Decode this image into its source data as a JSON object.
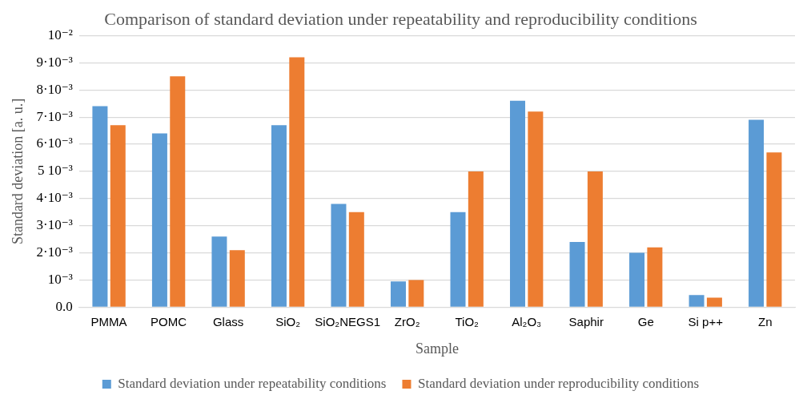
{
  "chart_data": {
    "type": "bar",
    "title": "Comparison of standard deviation under repeatability and reproducibility conditions",
    "xlabel": "Sample",
    "ylabel": "Standard deviation [a. u.]",
    "categories": [
      "PMMA",
      "POMC",
      "Glass",
      "SiO₂",
      "SiO₂NEGS1",
      "ZrO₂",
      "TiO₂",
      "Al₂O₃",
      "Saphir",
      "Ge",
      "Si p++",
      "Zn"
    ],
    "series": [
      {
        "name": "Standard deviation under repeatability conditions",
        "color": "#5b9bd5",
        "values": [
          0.0074,
          0.0064,
          0.0026,
          0.0067,
          0.0038,
          0.00095,
          0.0035,
          0.0076,
          0.0024,
          0.002,
          0.00045,
          0.0069
        ]
      },
      {
        "name": "Standard deviation under reproducibility conditions",
        "color": "#ed7d31",
        "values": [
          0.0067,
          0.0085,
          0.0021,
          0.0092,
          0.0035,
          0.001,
          0.005,
          0.0072,
          0.005,
          0.0022,
          0.00035,
          0.0057
        ]
      }
    ],
    "ylim": [
      0,
      0.01
    ],
    "yticks": [
      {
        "value": 0,
        "label": "0.0"
      },
      {
        "value": 0.001,
        "label": "10⁻³"
      },
      {
        "value": 0.002,
        "label": "2·10⁻³"
      },
      {
        "value": 0.003,
        "label": "3·10⁻³"
      },
      {
        "value": 0.004,
        "label": "4·10⁻³"
      },
      {
        "value": 0.005,
        "label": "5 10⁻³"
      },
      {
        "value": 0.006,
        "label": "6·10⁻³"
      },
      {
        "value": 0.007,
        "label": "7·10⁻³"
      },
      {
        "value": 0.008,
        "label": "8·10⁻³"
      },
      {
        "value": 0.009,
        "label": "9·10⁻³"
      },
      {
        "value": 0.01,
        "label": "10⁻²"
      }
    ],
    "grid": "y",
    "legend": "bottom"
  }
}
